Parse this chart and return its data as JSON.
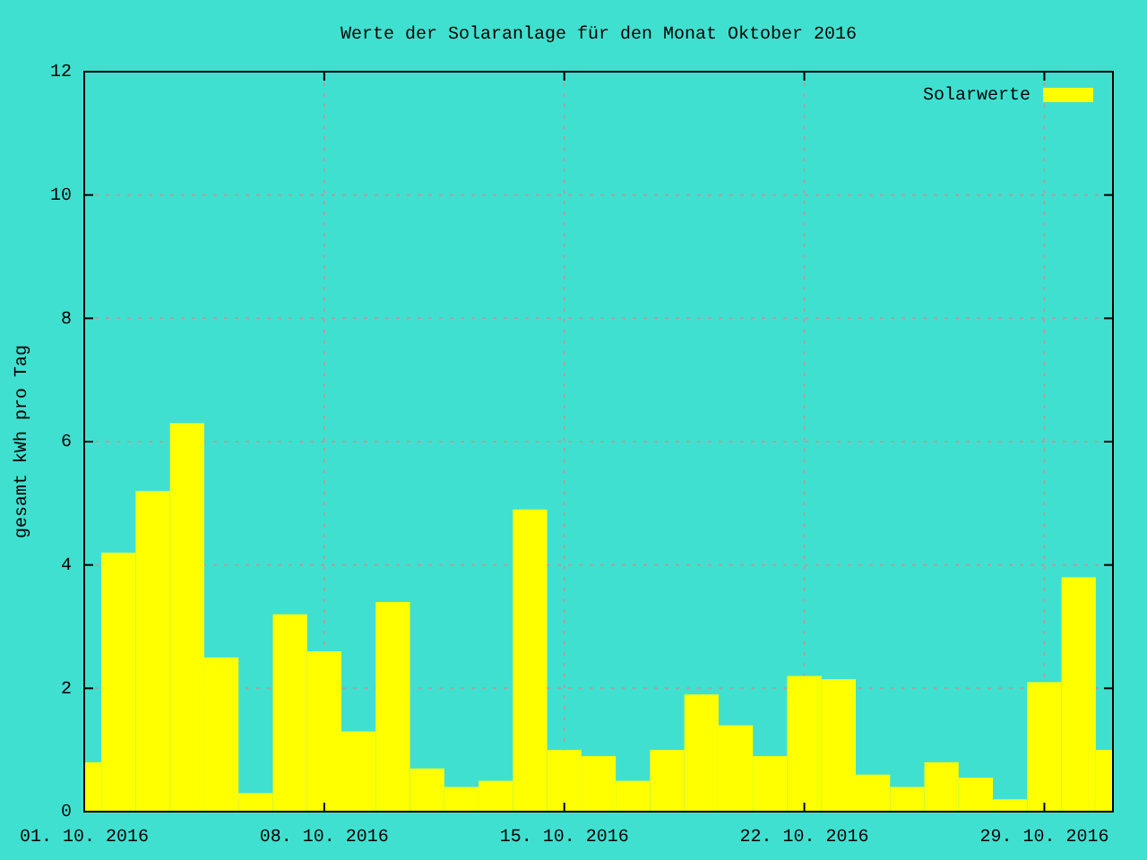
{
  "chart_data": {
    "type": "bar",
    "title": "Werte der Solaranlage für den Monat Oktober 2016",
    "ylabel": "gesamt kWh pro Tag",
    "x": [
      "2016-10-01",
      "2016-10-02",
      "2016-10-03",
      "2016-10-04",
      "2016-10-05",
      "2016-10-06",
      "2016-10-07",
      "2016-10-08",
      "2016-10-09",
      "2016-10-10",
      "2016-10-11",
      "2016-10-12",
      "2016-10-13",
      "2016-10-14",
      "2016-10-15",
      "2016-10-16",
      "2016-10-17",
      "2016-10-18",
      "2016-10-19",
      "2016-10-20",
      "2016-10-21",
      "2016-10-22",
      "2016-10-23",
      "2016-10-24",
      "2016-10-25",
      "2016-10-26",
      "2016-10-27",
      "2016-10-28",
      "2016-10-29",
      "2016-10-30",
      "2016-10-31"
    ],
    "series": [
      {
        "name": "Solarwerte",
        "color": "#ffff00",
        "values": [
          0.8,
          4.2,
          5.2,
          6.3,
          2.5,
          0.3,
          3.2,
          2.6,
          1.3,
          3.4,
          0.7,
          0.4,
          0.5,
          4.9,
          1.0,
          0.9,
          0.5,
          1.0,
          1.9,
          1.4,
          0.9,
          2.2,
          2.15,
          0.6,
          0.4,
          0.8,
          0.55,
          0.2,
          2.1,
          3.8,
          1.0
        ]
      }
    ],
    "xlim": [
      "2016-10-01",
      "2016-10-31"
    ],
    "xticks": [
      {
        "value": "2016-10-01",
        "label": "01. 10. 2016"
      },
      {
        "value": "2016-10-08",
        "label": "08. 10. 2016"
      },
      {
        "value": "2016-10-15",
        "label": "15. 10. 2016"
      },
      {
        "value": "2016-10-22",
        "label": "22. 10. 2016"
      },
      {
        "value": "2016-10-29",
        "label": "29. 10. 2016"
      }
    ],
    "ylim": [
      0,
      12
    ],
    "yticks": [
      0,
      2,
      4,
      6,
      8,
      10,
      12
    ],
    "grid": true,
    "legend": "top right"
  }
}
